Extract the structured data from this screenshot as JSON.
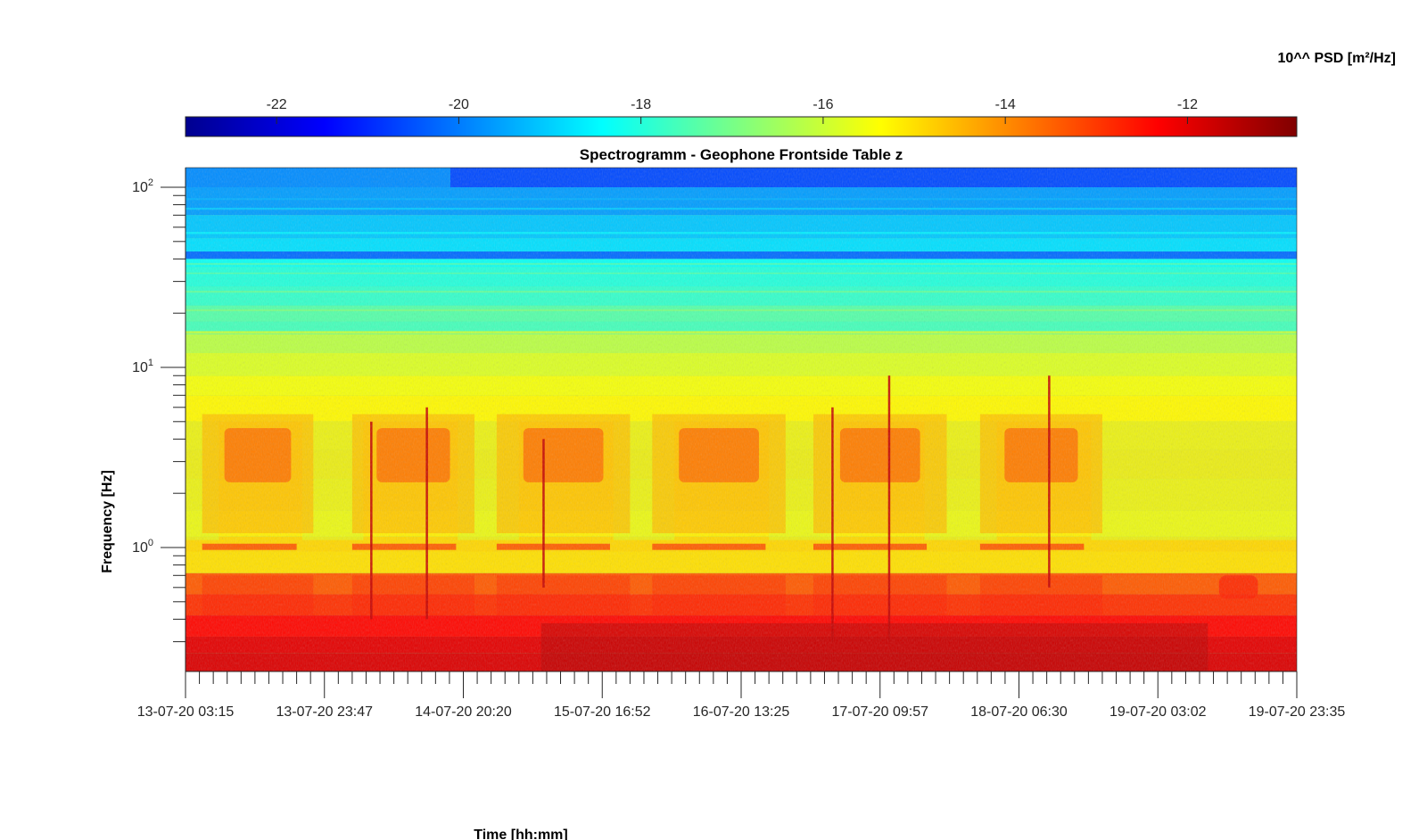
{
  "chart_data": {
    "type": "heatmap",
    "title": "Spectrogramm - Geophone Frontside Table z",
    "xlabel": "Time [hh:mm]",
    "ylabel": "Frequency [Hz]",
    "yscale": "log",
    "ylim": [
      0.2,
      125
    ],
    "y_ticks": [
      {
        "base": "10",
        "exp": "2",
        "value": 100
      },
      {
        "base": "10",
        "exp": "1",
        "value": 10
      },
      {
        "base": "10",
        "exp": "0",
        "value": 1
      }
    ],
    "x_tick_labels": [
      "13-07-20 03:15",
      "13-07-20 23:47",
      "14-07-20 20:20",
      "15-07-20 16:52",
      "16-07-20 13:25",
      "17-07-20 09:57",
      "18-07-20 06:30",
      "19-07-20 03:02",
      "19-07-20 23:35"
    ],
    "colorbar": {
      "label": "10^^ PSD [m²/Hz]",
      "range": [
        -23,
        -10.8
      ],
      "ticks": [
        "-22",
        "-20",
        "-18",
        "-16",
        "-14",
        "-12"
      ],
      "colormap": "jet",
      "location": "top"
    },
    "features": [
      {
        "description": "dominant energy band",
        "freq_range_hz": [
          0.2,
          0.7
        ],
        "log10_psd": -11.5
      },
      {
        "description": "daily activity bursts",
        "freq_range_hz": [
          2,
          5
        ],
        "count": 6,
        "log10_psd": -13.5
      },
      {
        "description": "line at 1 Hz",
        "freq_hz": 1.0,
        "log10_psd": -13
      },
      {
        "description": "broadband transients",
        "count": 6,
        "log10_psd": -12
      }
    ]
  }
}
